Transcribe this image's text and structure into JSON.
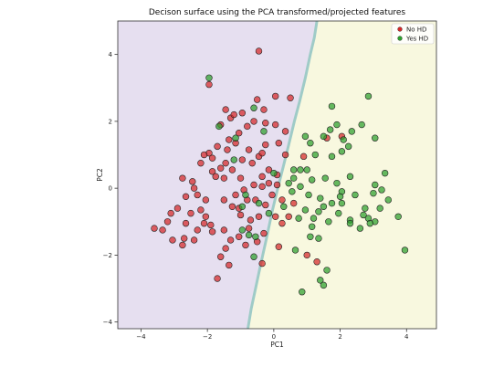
{
  "chart_data": {
    "type": "scatter",
    "title": "Decison surface using the PCA transformed/projected features",
    "xlabel": "PC1",
    "ylabel": "PC2",
    "xlim": [
      -4.7,
      4.9
    ],
    "ylim": [
      -4.2,
      5.0
    ],
    "xticks": [
      -4,
      -2,
      0,
      2,
      4
    ],
    "yticks": [
      -4,
      -2,
      0,
      2,
      4
    ],
    "grid": false,
    "legend_position": "top-right",
    "regions": [
      {
        "name": "No HD",
        "color": "#e6dff0"
      },
      {
        "name": "Yes HD",
        "color": "#f8f8df"
      }
    ],
    "boundary": [
      [
        1.3,
        5.0
      ],
      [
        1.22,
        4.5
      ],
      [
        1.1,
        4.0
      ],
      [
        0.95,
        3.3
      ],
      [
        0.78,
        2.6
      ],
      [
        0.62,
        2.0
      ],
      [
        0.45,
        1.3
      ],
      [
        0.3,
        0.7
      ],
      [
        0.12,
        0.0
      ],
      [
        -0.05,
        -0.7
      ],
      [
        -0.22,
        -1.5
      ],
      [
        -0.4,
        -2.3
      ],
      [
        -0.55,
        -3.0
      ],
      [
        -0.68,
        -3.6
      ],
      [
        -0.78,
        -4.2
      ]
    ],
    "series": [
      {
        "name": "No HD",
        "color": "#d62728",
        "points": [
          [
            -0.45,
            4.1
          ],
          [
            -1.95,
            3.1
          ],
          [
            -0.5,
            2.65
          ],
          [
            -0.3,
            2.35
          ],
          [
            0.5,
            2.7
          ],
          [
            0.05,
            2.75
          ],
          [
            -1.6,
            1.9
          ],
          [
            -0.95,
            2.25
          ],
          [
            -1.3,
            2.1
          ],
          [
            -1.05,
            1.65
          ],
          [
            -1.15,
            1.35
          ],
          [
            -1.4,
            1.15
          ],
          [
            -1.7,
            1.25
          ],
          [
            -1.95,
            1.05
          ],
          [
            -2.1,
            1.0
          ],
          [
            -2.2,
            0.75
          ],
          [
            -1.85,
            0.5
          ],
          [
            -1.75,
            0.35
          ],
          [
            -2.45,
            0.2
          ],
          [
            -2.75,
            0.3
          ],
          [
            -2.4,
            0.0
          ],
          [
            -2.65,
            -0.25
          ],
          [
            -2.3,
            -0.2
          ],
          [
            -2.05,
            -0.35
          ],
          [
            -2.2,
            -0.65
          ],
          [
            -2.5,
            -0.75
          ],
          [
            -2.9,
            -0.6
          ],
          [
            -3.1,
            -0.75
          ],
          [
            -3.2,
            -1.0
          ],
          [
            -3.6,
            -1.2
          ],
          [
            -3.35,
            -1.25
          ],
          [
            -2.65,
            -1.05
          ],
          [
            -2.3,
            -1.25
          ],
          [
            -2.1,
            -1.05
          ],
          [
            -1.85,
            -1.3
          ],
          [
            -1.5,
            -1.25
          ],
          [
            -1.3,
            -1.55
          ],
          [
            -1.05,
            -1.45
          ],
          [
            -0.85,
            -1.7
          ],
          [
            -0.5,
            -1.6
          ],
          [
            -0.3,
            -1.35
          ],
          [
            -0.45,
            -0.85
          ],
          [
            -0.7,
            -0.95
          ],
          [
            -1.0,
            -0.8
          ],
          [
            -1.25,
            -0.55
          ],
          [
            -1.5,
            -0.35
          ],
          [
            -1.15,
            -0.2
          ],
          [
            -0.9,
            -0.05
          ],
          [
            -0.6,
            0.1
          ],
          [
            -0.35,
            0.35
          ],
          [
            -0.15,
            0.15
          ],
          [
            -0.05,
            -0.2
          ],
          [
            -0.25,
            -0.5
          ],
          [
            -0.55,
            -0.35
          ],
          [
            -0.8,
            -0.35
          ],
          [
            -1.0,
            0.3
          ],
          [
            -1.25,
            0.55
          ],
          [
            -1.45,
            0.75
          ],
          [
            -1.5,
            0.3
          ],
          [
            -1.85,
            0.9
          ],
          [
            -1.6,
            0.6
          ],
          [
            -0.65,
            0.75
          ],
          [
            -0.45,
            0.95
          ],
          [
            -0.15,
            0.55
          ],
          [
            0.1,
            0.4
          ],
          [
            0.05,
            -0.85
          ],
          [
            0.25,
            -1.05
          ],
          [
            0.45,
            -0.85
          ],
          [
            0.25,
            -0.35
          ],
          [
            0.1,
            0.1
          ],
          [
            -0.25,
            1.3
          ],
          [
            0.35,
            1.7
          ],
          [
            0.05,
            1.9
          ],
          [
            0.15,
            1.35
          ],
          [
            -0.35,
            1.05
          ],
          [
            -0.95,
            0.85
          ],
          [
            -1.35,
            1.45
          ],
          [
            -0.8,
            1.85
          ],
          [
            -1.2,
            2.2
          ],
          [
            -0.6,
            2.0
          ],
          [
            -0.25,
            1.95
          ],
          [
            -2.7,
            -1.5
          ],
          [
            -2.4,
            -1.55
          ],
          [
            -1.6,
            -2.05
          ],
          [
            -1.35,
            -2.3
          ],
          [
            -1.7,
            -2.7
          ],
          [
            -0.35,
            -2.25
          ],
          [
            -1.45,
            -1.8
          ],
          [
            0.15,
            -1.75
          ],
          [
            -2.05,
            -0.85
          ],
          [
            -2.75,
            -1.7
          ],
          [
            -1.9,
            -1.1
          ],
          [
            -3.05,
            -1.55
          ],
          [
            -1.05,
            -0.6
          ],
          [
            -0.75,
            1.15
          ],
          [
            -1.45,
            2.35
          ],
          [
            -0.35,
            0.05
          ],
          [
            -0.75,
            -1.2
          ],
          [
            0.6,
            -0.45
          ],
          [
            0.35,
            1.0
          ],
          [
            1.6,
            1.5
          ],
          [
            1.0,
            -2.0
          ],
          [
            1.3,
            -2.2
          ],
          [
            2.05,
            1.55
          ],
          [
            0.9,
            0.95
          ]
        ]
      },
      {
        "name": "Yes HD",
        "color": "#2ca02c",
        "points": [
          [
            -1.95,
            3.3
          ],
          [
            -0.6,
            2.4
          ],
          [
            -1.65,
            1.85
          ],
          [
            -1.15,
            1.5
          ],
          [
            -1.2,
            0.85
          ],
          [
            -0.3,
            1.7
          ],
          [
            0.95,
            1.55
          ],
          [
            1.5,
            1.55
          ],
          [
            1.9,
            1.9
          ],
          [
            2.1,
            1.45
          ],
          [
            2.35,
            1.7
          ],
          [
            2.85,
            2.75
          ],
          [
            2.65,
            1.9
          ],
          [
            3.05,
            1.5
          ],
          [
            1.75,
            2.45
          ],
          [
            1.25,
            1.0
          ],
          [
            1.75,
            0.95
          ],
          [
            2.05,
            1.1
          ],
          [
            1.0,
            0.55
          ],
          [
            0.8,
            0.55
          ],
          [
            0.6,
            0.55
          ],
          [
            1.15,
            0.25
          ],
          [
            1.55,
            0.3
          ],
          [
            1.9,
            0.15
          ],
          [
            2.3,
            0.35
          ],
          [
            2.05,
            -0.1
          ],
          [
            2.45,
            -0.2
          ],
          [
            1.4,
            -0.3
          ],
          [
            1.05,
            -0.2
          ],
          [
            0.8,
            0.05
          ],
          [
            0.55,
            -0.1
          ],
          [
            0.3,
            -0.55
          ],
          [
            0.75,
            -0.9
          ],
          [
            1.2,
            -0.9
          ],
          [
            1.5,
            -0.55
          ],
          [
            1.65,
            -1.0
          ],
          [
            1.95,
            -0.75
          ],
          [
            2.3,
            -0.95
          ],
          [
            2.75,
            -0.6
          ],
          [
            2.85,
            -0.9
          ],
          [
            3.05,
            -1.0
          ],
          [
            3.2,
            -0.6
          ],
          [
            3.45,
            -0.35
          ],
          [
            3.0,
            -0.15
          ],
          [
            3.35,
            0.45
          ],
          [
            3.05,
            0.1
          ],
          [
            3.75,
            -0.85
          ],
          [
            3.95,
            -1.85
          ],
          [
            1.1,
            -1.45
          ],
          [
            1.35,
            -1.5
          ],
          [
            0.65,
            -1.85
          ],
          [
            -0.55,
            -1.45
          ],
          [
            -0.75,
            -1.4
          ],
          [
            -0.85,
            -0.2
          ],
          [
            -0.15,
            -0.75
          ],
          [
            0.0,
            0.45
          ],
          [
            -0.95,
            -0.55
          ],
          [
            1.6,
            -2.45
          ],
          [
            1.4,
            -2.75
          ],
          [
            1.5,
            -2.9
          ],
          [
            0.85,
            -3.1
          ],
          [
            -0.6,
            -2.05
          ],
          [
            -0.45,
            -0.45
          ],
          [
            2.7,
            -0.8
          ],
          [
            2.6,
            -1.2
          ],
          [
            2.3,
            -1.05
          ],
          [
            2.05,
            -0.45
          ],
          [
            1.35,
            -0.7
          ],
          [
            1.15,
            -1.15
          ],
          [
            0.95,
            -0.65
          ],
          [
            0.6,
            0.3
          ],
          [
            1.75,
            -0.45
          ],
          [
            2.9,
            -1.05
          ],
          [
            1.1,
            1.35
          ],
          [
            1.7,
            1.75
          ],
          [
            2.25,
            1.25
          ],
          [
            -0.95,
            -1.25
          ],
          [
            2.0,
            -0.25
          ],
          [
            0.45,
            0.15
          ],
          [
            3.25,
            -0.05
          ]
        ]
      }
    ]
  }
}
